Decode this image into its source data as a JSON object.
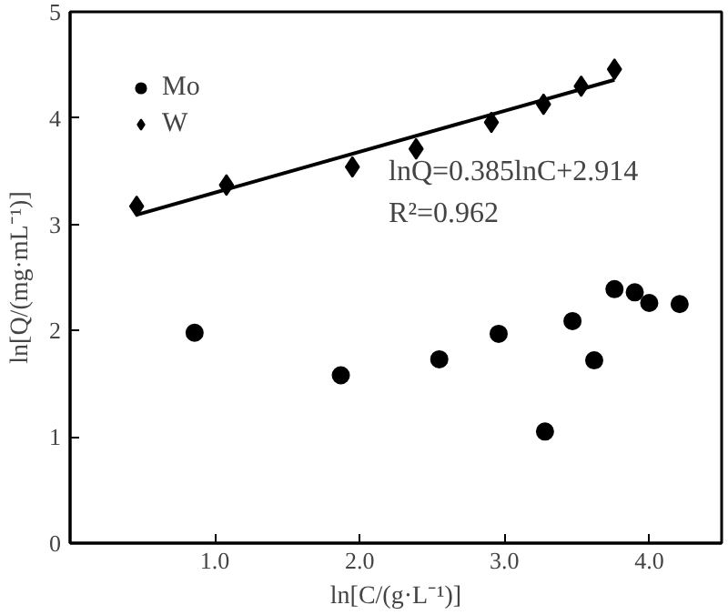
{
  "chart_data": {
    "type": "scatter",
    "xlabel": "ln[C/(g·L⁻¹)]",
    "ylabel": "ln[Q/(mg·mL⁻¹)]",
    "xlim": [
      0,
      4.5
    ],
    "ylim": [
      0,
      5
    ],
    "xticks": [
      {
        "value": 1,
        "label": "1.0"
      },
      {
        "value": 2,
        "label": "2.0"
      },
      {
        "value": 3,
        "label": "3.0"
      },
      {
        "value": 4,
        "label": "4.0"
      }
    ],
    "yticks": [
      0,
      1,
      2,
      3,
      4,
      5
    ],
    "grid": false,
    "legend": "top left",
    "annotations": [
      "lnQ=0.385lnC+2.914",
      "R²=0.962"
    ],
    "series": [
      {
        "name": "Mo",
        "color": "#000000",
        "marker": "circle",
        "x": [
          0.86,
          1.87,
          2.55,
          2.96,
          3.28,
          3.47,
          3.62,
          3.76,
          3.9,
          4.0,
          4.21
        ],
        "values": [
          1.98,
          1.58,
          1.73,
          1.97,
          1.05,
          2.09,
          1.72,
          2.39,
          2.36,
          2.26,
          2.25
        ]
      },
      {
        "name": "W",
        "color": "#000000",
        "marker": "diamond",
        "x": [
          0.46,
          1.08,
          1.95,
          2.39,
          2.91,
          3.27,
          3.53,
          3.76
        ],
        "values": [
          3.17,
          3.37,
          3.54,
          3.71,
          3.96,
          4.13,
          4.3,
          4.46
        ]
      },
      {
        "type": "line",
        "color": "#000000",
        "line_style": "solid",
        "x": [
          0.46,
          3.76
        ],
        "values": [
          3.09,
          4.36
        ]
      }
    ]
  }
}
